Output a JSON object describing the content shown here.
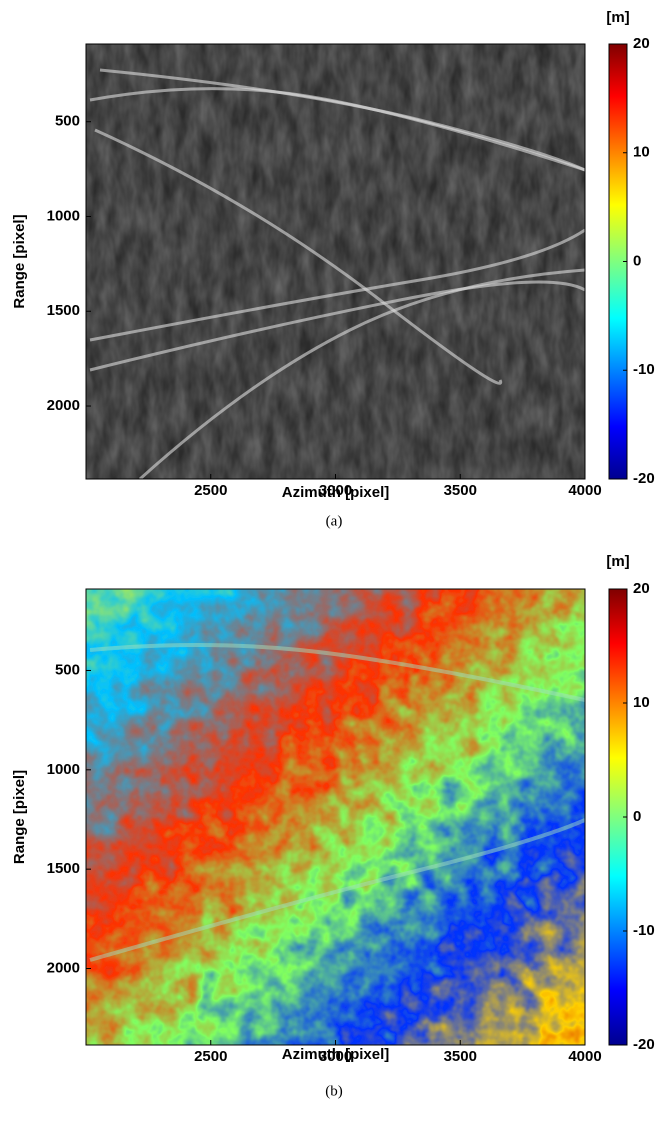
{
  "chart_data": [
    {
      "type": "heatmap",
      "xlabel": "Azimuth [pixel]",
      "ylabel": "Range [pixel]",
      "xlim": [
        2000,
        4000
      ],
      "xticks": [
        2500,
        3000,
        3500,
        4000
      ],
      "ylim": [
        90,
        2385
      ],
      "yticks": [
        500,
        1000,
        1500,
        2000
      ],
      "colorbar": {
        "label": "[m]",
        "lim": [
          -20,
          20
        ],
        "ticks": [
          -20,
          -10,
          0,
          10,
          20
        ]
      },
      "caption": "(a)"
    },
    {
      "type": "heatmap",
      "xlabel": "Azimuth [pixel]",
      "ylabel": "Range [pixel]",
      "xlim": [
        2000,
        4000
      ],
      "xticks": [
        2500,
        3000,
        3500,
        4000
      ],
      "ylim": [
        90,
        2385
      ],
      "yticks": [
        500,
        1000,
        1500,
        2000
      ],
      "colorbar": {
        "label": "[m]",
        "lim": [
          -20,
          20
        ],
        "ticks": [
          -20,
          -10,
          0,
          10,
          20
        ]
      },
      "caption": "(b)"
    }
  ]
}
